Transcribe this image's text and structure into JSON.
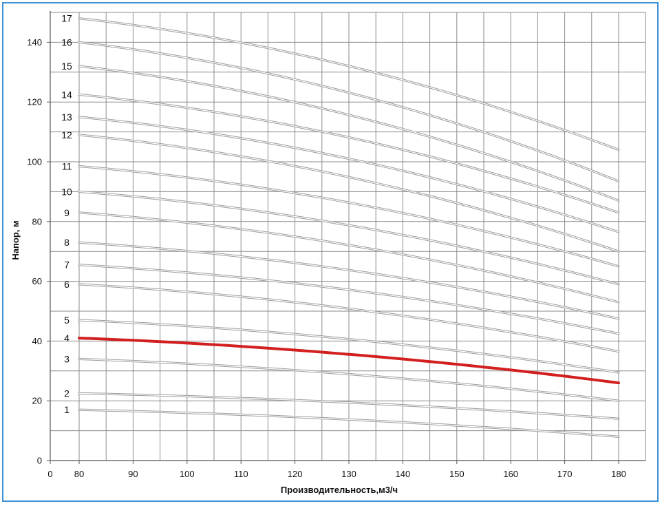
{
  "chart_data": {
    "type": "line",
    "title": "",
    "xlabel": "Производительность,м3/ч",
    "ylabel": "Напор, м",
    "xlim": [
      0,
      180
    ],
    "ylim": [
      0,
      150
    ],
    "x_ticks": [
      0,
      80,
      90,
      100,
      110,
      120,
      130,
      140,
      150,
      160,
      170,
      180
    ],
    "y_ticks": [
      0,
      20,
      40,
      60,
      80,
      100,
      120,
      140
    ],
    "grid": true,
    "legend": "none",
    "highlight_color": "#d21f1f",
    "curve_color": "#9e9e9e",
    "x": [
      80,
      180
    ],
    "series": [
      {
        "name": "1",
        "values": [
          17,
          8
        ]
      },
      {
        "name": "2",
        "values": [
          22.5,
          14
        ]
      },
      {
        "name": "3",
        "values": [
          34,
          20
        ]
      },
      {
        "name": "4",
        "values": [
          41,
          26
        ],
        "highlight": true
      },
      {
        "name": "5",
        "values": [
          47,
          29.5
        ]
      },
      {
        "name": "6",
        "values": [
          59,
          36.5
        ]
      },
      {
        "name": "7",
        "values": [
          65.5,
          42.5
        ]
      },
      {
        "name": "8",
        "values": [
          73,
          47.5
        ]
      },
      {
        "name": "9",
        "values": [
          83,
          53
        ]
      },
      {
        "name": "10",
        "values": [
          90,
          59
        ]
      },
      {
        "name": "11",
        "values": [
          98.5,
          65
        ]
      },
      {
        "name": "12",
        "values": [
          109,
          70
        ]
      },
      {
        "name": "13",
        "values": [
          115,
          76.5
        ]
      },
      {
        "name": "14",
        "values": [
          122.5,
          83
        ]
      },
      {
        "name": "15",
        "values": [
          132,
          87
        ]
      },
      {
        "name": "16",
        "values": [
          140,
          93.5
        ]
      },
      {
        "name": "17",
        "values": [
          148,
          104
        ]
      }
    ]
  }
}
